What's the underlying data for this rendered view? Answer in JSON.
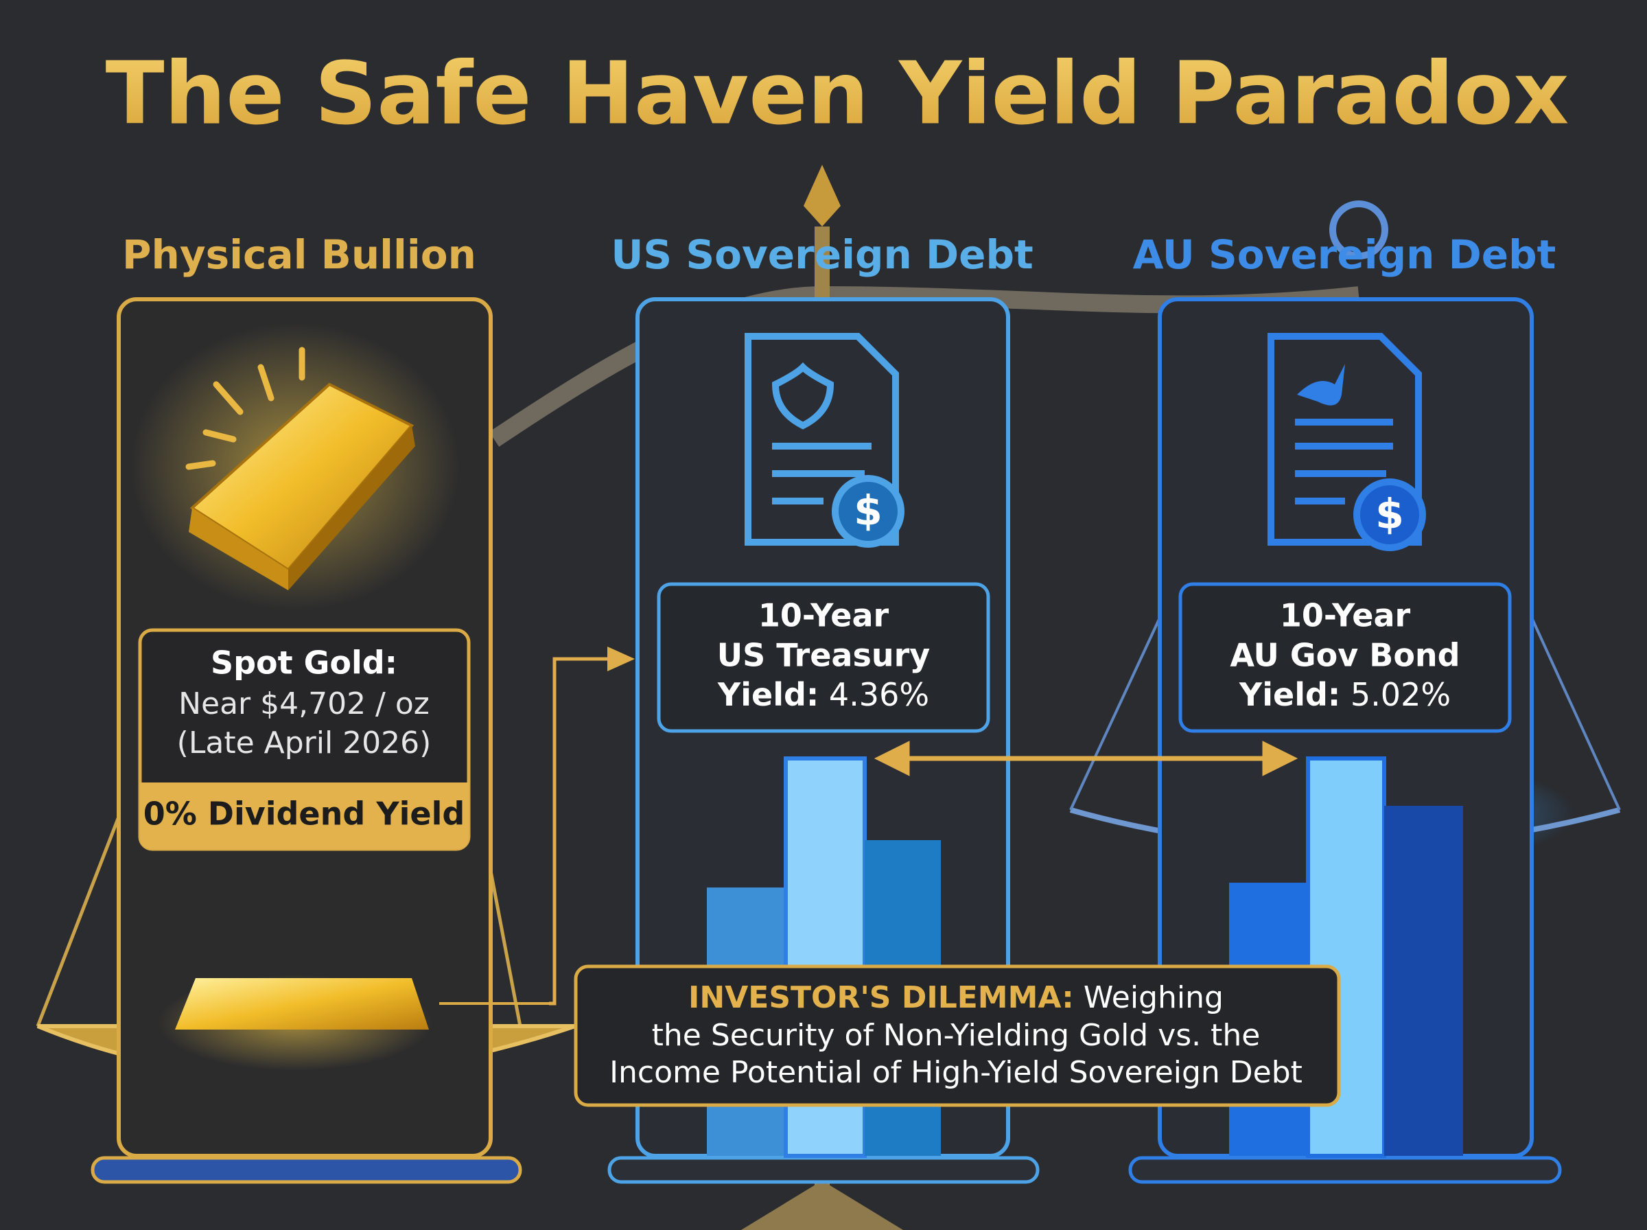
{
  "title": "The Safe Haven Yield Paradox",
  "gold": {
    "header": "Physical Bullion",
    "label": "Spot Gold:",
    "price": "Near $4,702 / oz",
    "date": "(Late April 2026)",
    "badge": "0% Dividend Yield"
  },
  "us": {
    "header": "US Sovereign Debt",
    "line1": "10-Year",
    "line2": "US Treasury",
    "yield_label": "Yield:",
    "yield_value": "4.36%"
  },
  "au": {
    "header": "AU Sovereign Debt",
    "line1": "10-Year",
    "line2": "AU Gov Bond",
    "yield_label": "Yield:",
    "yield_value": "5.02%"
  },
  "dilemma": {
    "label": "INVESTOR'S DILEMMA:",
    "line1": "Weighing",
    "line2": "the Security of Non-Yielding Gold vs. the",
    "line3": "Income Potential of High-Yield Sovereign Debt"
  }
}
